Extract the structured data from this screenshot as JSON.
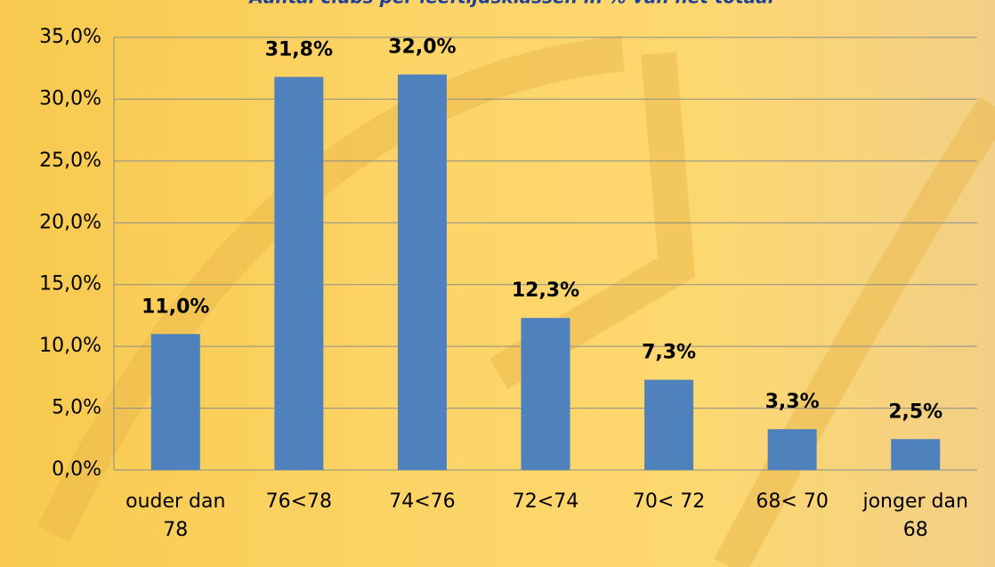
{
  "chart_data": {
    "type": "bar",
    "title": "Aantal clubs per leeftijdsklassen in % van het totaal",
    "categories": [
      "ouder dan 78",
      "76<78",
      "74<76",
      "72<74",
      "70< 72",
      "68< 70",
      "jonger dan 68"
    ],
    "values": [
      11.0,
      31.8,
      32.0,
      12.3,
      7.3,
      3.3,
      2.5
    ],
    "value_labels": [
      "11,0%",
      "31,8%",
      "32,0%",
      "12,3%",
      "7,3%",
      "3,3%",
      "2,5%"
    ],
    "color": "#4f81bd",
    "ylim": [
      0,
      35
    ],
    "yticks": [
      {
        "value": 0,
        "label": "0,0%"
      },
      {
        "value": 5,
        "label": "5,0%"
      },
      {
        "value": 10,
        "label": "10,0%"
      },
      {
        "value": 15,
        "label": "15,0%"
      },
      {
        "value": 20,
        "label": "20,0%"
      },
      {
        "value": 25,
        "label": "25,0%"
      },
      {
        "value": 30,
        "label": "30,0%"
      },
      {
        "value": 35,
        "label": "35,0%"
      }
    ],
    "grid": true
  }
}
